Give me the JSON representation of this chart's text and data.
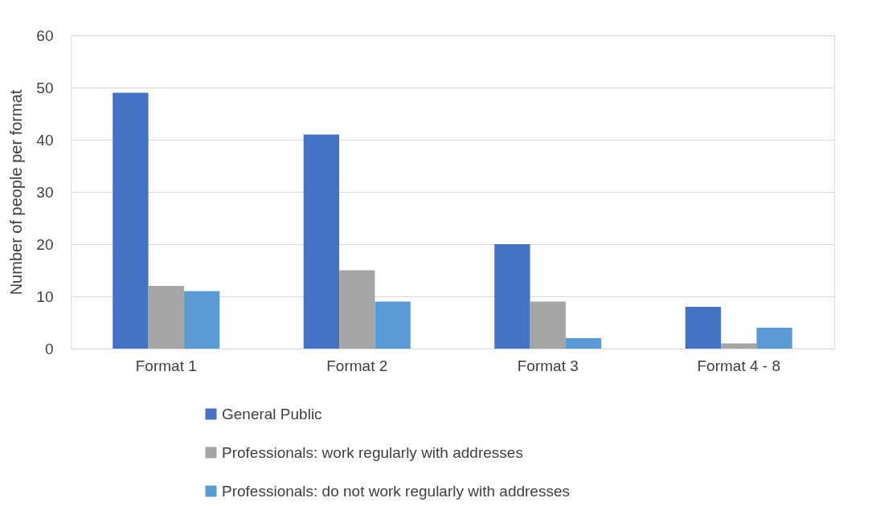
{
  "chart_data": {
    "type": "bar",
    "ylabel": "Number of people per format",
    "categories": [
      "Format 1",
      "Format 2",
      "Format 3",
      "Format 4 - 8"
    ],
    "series": [
      {
        "name": "General Public",
        "color": "#4472c4",
        "values": [
          49,
          41,
          20,
          8
        ]
      },
      {
        "name": "Professionals: work regularly with addresses",
        "color": "#a5a5a5",
        "values": [
          12,
          15,
          9,
          1
        ]
      },
      {
        "name": "Professionals: do not work regularly with addresses",
        "color": "#5b9bd5",
        "values": [
          11,
          9,
          2,
          4
        ]
      }
    ],
    "ylim": [
      0,
      60
    ],
    "yticks": [
      0,
      10,
      20,
      30,
      40,
      50,
      60
    ],
    "grid": "y",
    "legend": "bottom"
  }
}
